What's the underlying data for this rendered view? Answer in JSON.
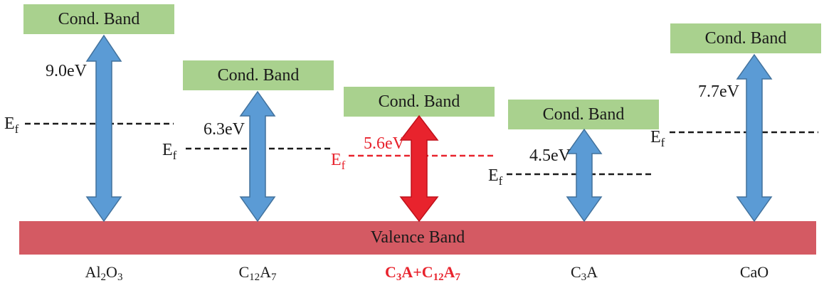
{
  "colors": {
    "conduction_band": "#a9d18e",
    "valence_band": "#d45a63",
    "gap_arrow": "#5b9bd5",
    "highlight": "#e8232d",
    "fermi_line": "#1a1a1a"
  },
  "bands": {
    "conduction_label": "Cond. Band",
    "valence_label": "Valence Band"
  },
  "fermi_symbol": "E",
  "fermi_subscript": "f",
  "materials": [
    {
      "name_parts": [
        "Al",
        "2",
        "O",
        "3"
      ],
      "gap_label": "9.0eV",
      "gap_ev": 9.0,
      "highlighted": false
    },
    {
      "name_parts": [
        "C",
        "12",
        "A",
        "7"
      ],
      "gap_label": "6.3eV",
      "gap_ev": 6.3,
      "highlighted": false
    },
    {
      "name_parts": [
        "C",
        "3",
        "A+C",
        "12",
        "A",
        "7"
      ],
      "gap_label": "5.6eV",
      "gap_ev": 5.6,
      "highlighted": true
    },
    {
      "name_parts": [
        "C",
        "3",
        "A"
      ],
      "gap_label": "4.5eV",
      "gap_ev": 4.5,
      "highlighted": false
    },
    {
      "name_parts": [
        "CaO"
      ],
      "gap_label": "7.7eV",
      "gap_ev": 7.7,
      "highlighted": false
    }
  ]
}
